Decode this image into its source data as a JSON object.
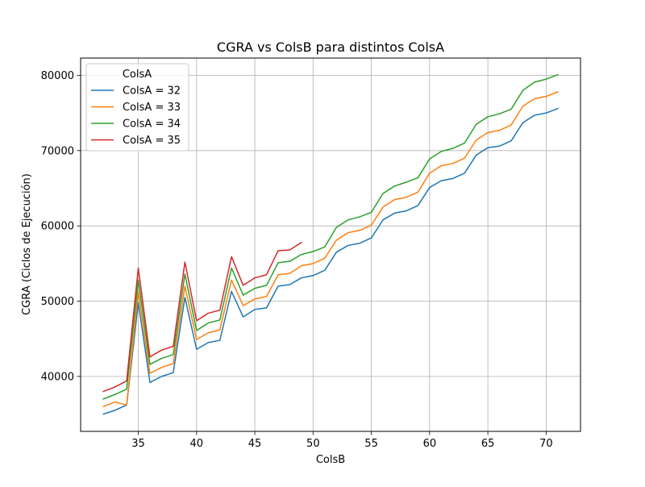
{
  "chart_data": {
    "type": "line",
    "title": "CGRA vs ColsB para distintos ColsA",
    "xlabel": "ColsB",
    "ylabel": "CGRA (Ciclos de Ejecución)",
    "xlim": [
      30.05,
      72.95
    ],
    "ylim": [
      32700,
      82300
    ],
    "xticks": [
      35,
      40,
      45,
      50,
      55,
      60,
      65,
      70
    ],
    "yticks": [
      40000,
      50000,
      60000,
      70000,
      80000
    ],
    "xtick_labels": [
      "35",
      "40",
      "45",
      "50",
      "55",
      "60",
      "65",
      "70"
    ],
    "ytick_labels": [
      "40000",
      "50000",
      "60000",
      "70000",
      "80000"
    ],
    "grid": true,
    "legend": {
      "title": "ColsA",
      "position": "top-left"
    },
    "series": [
      {
        "name": "ColsA = 32",
        "color": "#1f77b4",
        "x": [
          32,
          33,
          34,
          35,
          36,
          37,
          38,
          39,
          40,
          41,
          42,
          43,
          44,
          45,
          46,
          47,
          48,
          49,
          50,
          51,
          52,
          53,
          54,
          55,
          56,
          57,
          58,
          59,
          60,
          61,
          62,
          63,
          64,
          65,
          66,
          67,
          68,
          69,
          70,
          71
        ],
        "y": [
          35000,
          35500,
          36200,
          49800,
          39200,
          40000,
          40500,
          50500,
          43600,
          44500,
          44800,
          51300,
          47900,
          48900,
          49100,
          52000,
          52200,
          53100,
          53400,
          54100,
          56500,
          57400,
          57700,
          58400,
          60800,
          61700,
          62000,
          62700,
          65100,
          66000,
          66300,
          67000,
          69400,
          70400,
          70600,
          71300,
          73700,
          74700,
          75000,
          75600
        ]
      },
      {
        "name": "ColsA = 33",
        "color": "#ff7f0e",
        "x": [
          32,
          33,
          34,
          35,
          36,
          37,
          38,
          39,
          40,
          41,
          42,
          43,
          44,
          45,
          46,
          47,
          48,
          49,
          50,
          51,
          52,
          53,
          54,
          55,
          56,
          57,
          58,
          59,
          60,
          61,
          62,
          63,
          64,
          65,
          66,
          67,
          68,
          69,
          70,
          71
        ],
        "y": [
          36000,
          36600,
          36200,
          51300,
          40400,
          41200,
          41700,
          52000,
          44900,
          45800,
          46200,
          52800,
          49400,
          50300,
          50600,
          53500,
          53700,
          54700,
          55000,
          55700,
          58100,
          59100,
          59400,
          60100,
          62500,
          63500,
          63800,
          64500,
          67000,
          68000,
          68300,
          69000,
          71400,
          72400,
          72700,
          73400,
          75900,
          76900,
          77200,
          77800
        ]
      },
      {
        "name": "ColsA = 34",
        "color": "#2ca02c",
        "x": [
          32,
          33,
          34,
          35,
          36,
          37,
          38,
          39,
          40,
          41,
          42,
          43,
          44,
          45,
          46,
          47,
          48,
          49,
          50,
          51,
          52,
          53,
          54,
          55,
          56,
          57,
          58,
          59,
          60,
          61,
          62,
          63,
          64,
          65,
          66,
          67,
          68,
          69,
          70,
          71
        ],
        "y": [
          37000,
          37600,
          38300,
          52800,
          41600,
          42400,
          42900,
          53600,
          46100,
          47100,
          47500,
          54400,
          50800,
          51700,
          52100,
          55100,
          55300,
          56200,
          56600,
          57200,
          59800,
          60800,
          61200,
          61800,
          64300,
          65300,
          65800,
          66400,
          68900,
          69900,
          70300,
          71000,
          73500,
          74500,
          74900,
          75500,
          78000,
          79100,
          79500,
          80100
        ]
      },
      {
        "name": "ColsA = 35",
        "color": "#d62728",
        "x": [
          32,
          33,
          34,
          35,
          36,
          37,
          38,
          39,
          40,
          41,
          42,
          43,
          44,
          45,
          46,
          47,
          48,
          49
        ],
        "y": [
          38000,
          38600,
          39400,
          54400,
          42600,
          43500,
          44000,
          55200,
          47400,
          48400,
          48800,
          55900,
          52100,
          53100,
          53500,
          56700,
          56800,
          57800
        ]
      }
    ]
  }
}
